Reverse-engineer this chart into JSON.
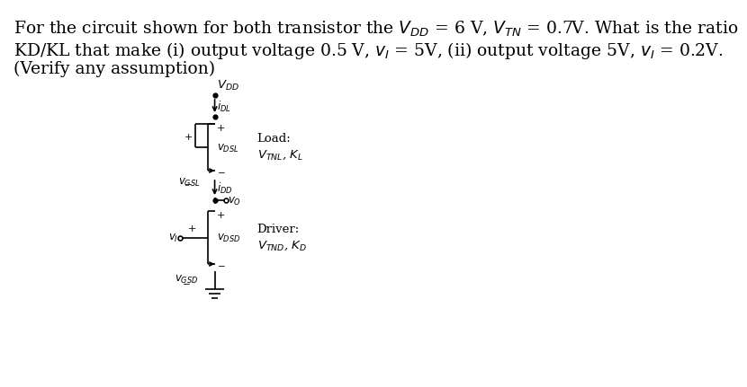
{
  "background_color": "#ffffff",
  "line1": "For the circuit shown for both transistor the $V_{DD}$ = 6 V, $V_{TN}$ = 0.7V. What is the ratio",
  "line2": "KD/KL that make (i) output voltage 0.5 V, $v_I$ = 5V, (ii) output voltage 5V, $v_I$ = 0.2V.",
  "line3": "(Verify any assumption)",
  "vdd_label": "$V_{DD}$",
  "idl_label": "$i_{DL}$",
  "vdsl_label": "$v_{DSL}$",
  "vgsl_label": "$v_{GSL}$",
  "idd_label": "$i_{DD}$",
  "vo_label": "$v_O$",
  "vi_label": "$v_I$",
  "vdsd_label": "$v_{DSD}$",
  "vgsd_label": "$v_{GSD}$",
  "load_label": "Load:",
  "load_params": "$V_{TNL}$, $K_L$",
  "driver_label": "Driver:",
  "driver_params": "$V_{TND}$, $K_D$",
  "font_size_text": 13.5,
  "font_size_circuit": 8.5,
  "lw": 1.2
}
